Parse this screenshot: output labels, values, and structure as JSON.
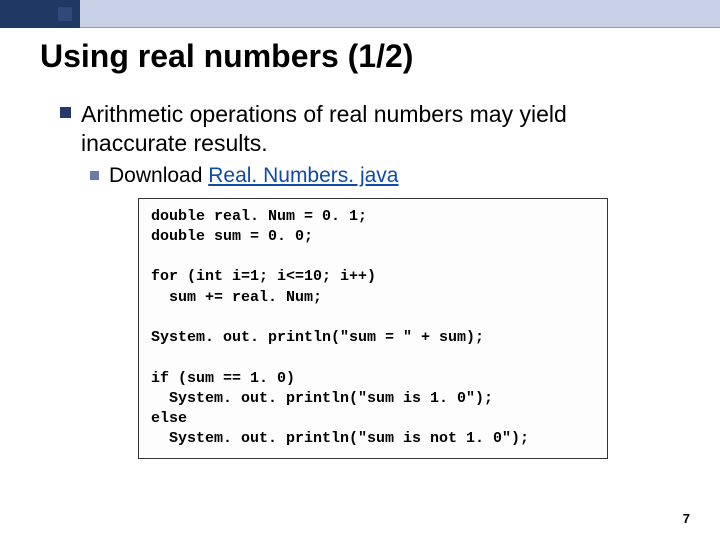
{
  "accent": {
    "dark_color": "#1f3864",
    "inner_color": "#2f4a7a",
    "light_color": "#c9d1e6"
  },
  "title": "Using real numbers (1/2)",
  "bullet1_line1": "Arithmetic operations of real numbers may yield",
  "bullet1_line2": "inaccurate results.",
  "sub_bullet_prefix": "Download ",
  "sub_bullet_link": "Real. Numbers. java",
  "code": {
    "l1": "double real. Num = 0. 1;",
    "l2": "double sum = 0. 0;",
    "l3": "",
    "l4": "for (int i=1; i<=10; i++)",
    "l5": "  sum += real. Num;",
    "l6": "",
    "l7": "System. out. println(\"sum = \" + sum);",
    "l8": "",
    "l9": "if (sum == 1. 0)",
    "l10": "  System. out. println(\"sum is 1. 0\");",
    "l11": "else",
    "l12": "  System. out. println(\"sum is not 1. 0\");"
  },
  "page_number": "7"
}
